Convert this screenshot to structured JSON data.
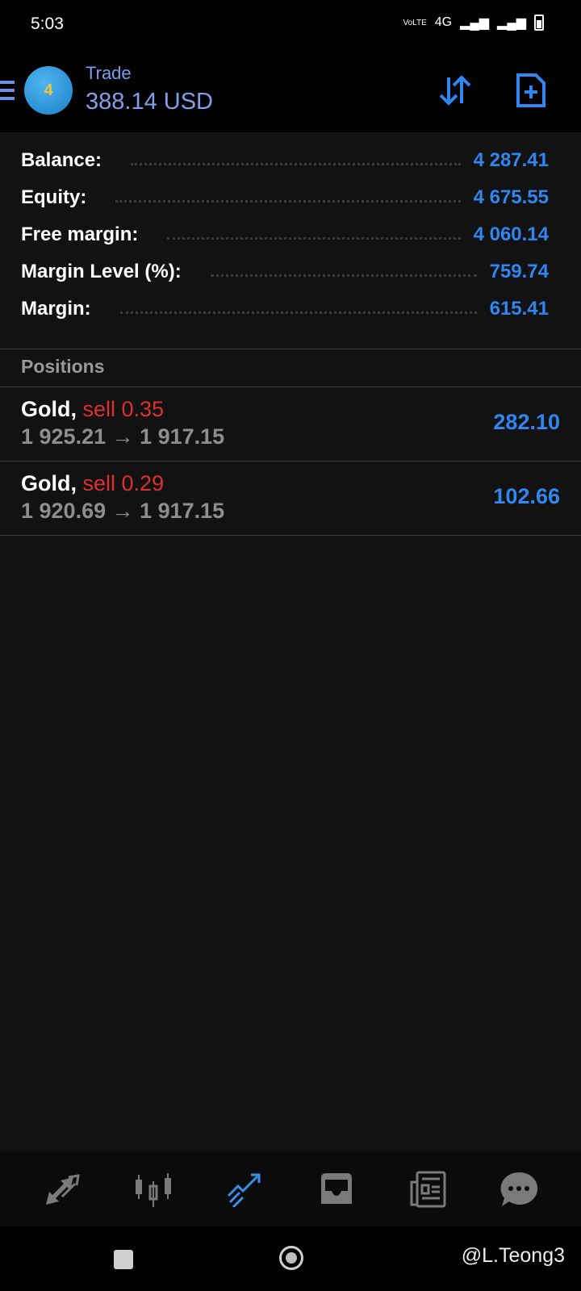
{
  "status_bar": {
    "time": "5:03",
    "network": "4G"
  },
  "header": {
    "subtitle": "Trade",
    "title": "388.14 USD"
  },
  "account": [
    {
      "label": "Balance:",
      "value": "4 287.41"
    },
    {
      "label": "Equity:",
      "value": "4 675.55"
    },
    {
      "label": "Free margin:",
      "value": "4 060.14"
    },
    {
      "label": "Margin Level (%):",
      "value": "759.74"
    },
    {
      "label": "Margin:",
      "value": "615.41"
    }
  ],
  "positions_label": "Positions",
  "positions": [
    {
      "symbol": "Gold,",
      "side": "sell 0.35",
      "prices": "1 925.21 → 1 917.15",
      "profit": "282.10"
    },
    {
      "symbol": "Gold,",
      "side": "sell 0.29",
      "prices": "1 920.69 → 1 917.15",
      "profit": "102.66"
    }
  ],
  "bottom_nav": [
    {
      "icon": "quotes-icon",
      "active": false
    },
    {
      "icon": "chart-icon",
      "active": false
    },
    {
      "icon": "trade-icon",
      "active": true
    },
    {
      "icon": "history-icon",
      "active": false
    },
    {
      "icon": "news-icon",
      "active": false
    },
    {
      "icon": "messages-icon",
      "active": false
    }
  ],
  "watermark": "@L.Teong3",
  "colors": {
    "accent": "#2f86f0",
    "sell": "#e0302e",
    "inactive": "#7a7a7a"
  }
}
